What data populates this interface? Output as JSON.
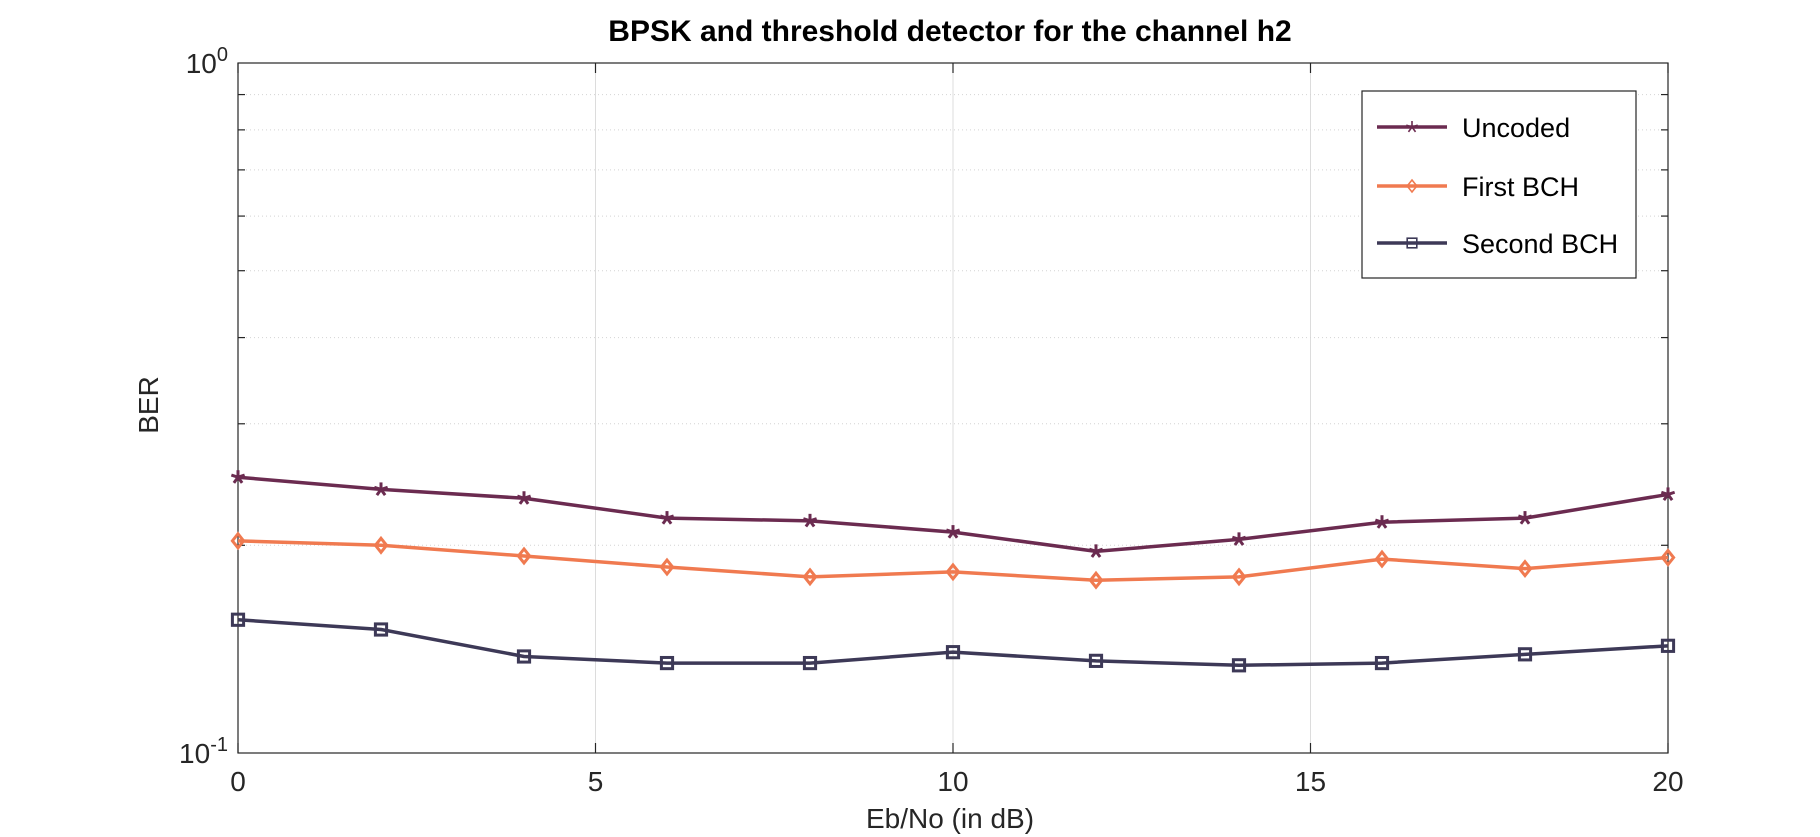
{
  "chart_data": {
    "type": "line",
    "title": "BPSK and threshold detector for the channel h2",
    "xlabel": "Eb/No (in dB)",
    "ylabel": "BER",
    "x": [
      0,
      2,
      4,
      6,
      8,
      10,
      12,
      14,
      16,
      18,
      20
    ],
    "xlim": [
      0,
      20
    ],
    "ylim": [
      0.1,
      1
    ],
    "yscale": "log",
    "xticks": [
      0,
      5,
      10,
      15,
      20
    ],
    "xtick_labels": [
      "0",
      "5",
      "10",
      "15",
      "20"
    ],
    "ytick_labels": [
      {
        "base": "10",
        "exp": "0",
        "value": 1
      },
      {
        "base": "10",
        "exp": "-1",
        "value": 0.1
      }
    ],
    "grid": true,
    "legend_position": "top-right",
    "series": [
      {
        "name": "Uncoded",
        "color": "#6b2b50",
        "marker": "star",
        "values": [
          0.251,
          0.241,
          0.234,
          0.219,
          0.217,
          0.209,
          0.196,
          0.204,
          0.216,
          0.219,
          0.237
        ]
      },
      {
        "name": "First BCH",
        "color": "#f07a50",
        "marker": "diamond",
        "values": [
          0.203,
          0.2,
          0.193,
          0.186,
          0.18,
          0.183,
          0.178,
          0.18,
          0.191,
          0.185,
          0.192
        ]
      },
      {
        "name": "Second BCH",
        "color": "#3d3957",
        "marker": "square",
        "values": [
          0.156,
          0.151,
          0.138,
          0.135,
          0.135,
          0.14,
          0.136,
          0.134,
          0.135,
          0.139,
          0.143
        ]
      }
    ]
  }
}
